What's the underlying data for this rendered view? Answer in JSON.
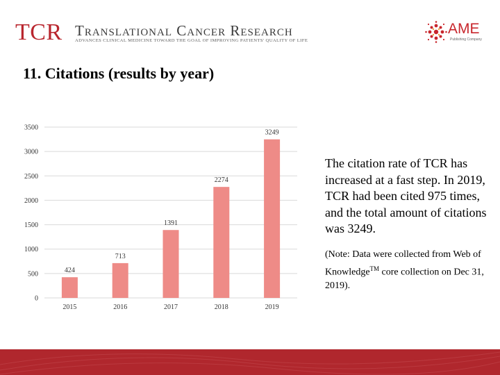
{
  "header": {
    "logo_abbr": "TCR",
    "journal_name": "Translational Cancer Research",
    "tagline": "ADVANCES CLINICAL MEDICINE TOWARD THE GOAL OF IMPROVING PATIENTS' QUALITY OF LIFE",
    "publisher": "AME",
    "publisher_sub": "Publishing Company"
  },
  "title": "11. Citations (results by year)",
  "note": {
    "main": "The citation rate of TCR has increased at a fast step. In 2019, TCR had been cited 975 times, and the total amount of citations was 3249.",
    "source_prefix": "(Note: Data were collected from Web of Knowledge",
    "source_sup": "TM",
    "source_suffix": " core collection on Dec 31, 2019)."
  },
  "colors": {
    "bar": "#ee8b87",
    "brand_red": "#b0272d",
    "grid": "#d9d9d9"
  },
  "chart_data": {
    "type": "bar",
    "categories": [
      "2015",
      "2016",
      "2017",
      "2018",
      "2019"
    ],
    "values": [
      424,
      713,
      1391,
      2274,
      3249
    ],
    "data_labels": [
      "424",
      "713",
      "1391",
      "2274",
      "3249"
    ],
    "title": "",
    "xlabel": "",
    "ylabel": "",
    "ylim": [
      0,
      3500
    ],
    "yticks": [
      0,
      500,
      1000,
      1500,
      2000,
      2500,
      3000,
      3500
    ],
    "grid": true,
    "legend": "none"
  }
}
